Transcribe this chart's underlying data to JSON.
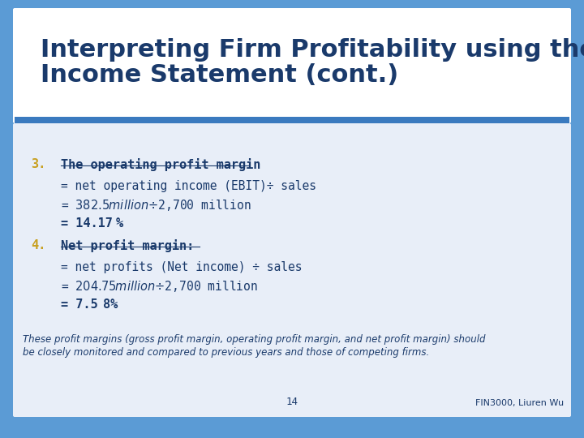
{
  "title_line1": "Interpreting Firm Profitability using the",
  "title_line2": "Income Statement (cont.)",
  "title_color": "#1a3a6b",
  "slide_bg_color": "#5b9bd5",
  "accent_shadow": "#3a7abf",
  "content_bg_color": "#e8eef8",
  "number_color": "#c8a020",
  "text_color": "#1a3a6b",
  "item3_number": "3.",
  "item3_header": "The operating profit margin",
  "item3_line1": "= net operating income (EBIT)÷ sales",
  "item3_line2": "= $382.5 million ÷ $2,700 million",
  "item3_line3_pre": "= 14.17",
  "item3_line3_bold": "%",
  "item4_number": "4.",
  "item4_header": "Net profit margin:",
  "item4_line1": "= net profits (Net income) ÷ sales",
  "item4_line2": "= $204.75 million ÷ $2,700 million",
  "item4_line3_pre": "= 7.5",
  "item4_line3_bold": "8%",
  "footer_italic_line1": "These profit margins (gross profit margin, operating profit margin, and net profit margin) should",
  "footer_italic_line2": "be closely monitored and compared to previous years and those of competing firms.",
  "page_number": "14",
  "footer_right": "FIN3000, Liuren Wu",
  "footer_color": "#1a3a6b"
}
